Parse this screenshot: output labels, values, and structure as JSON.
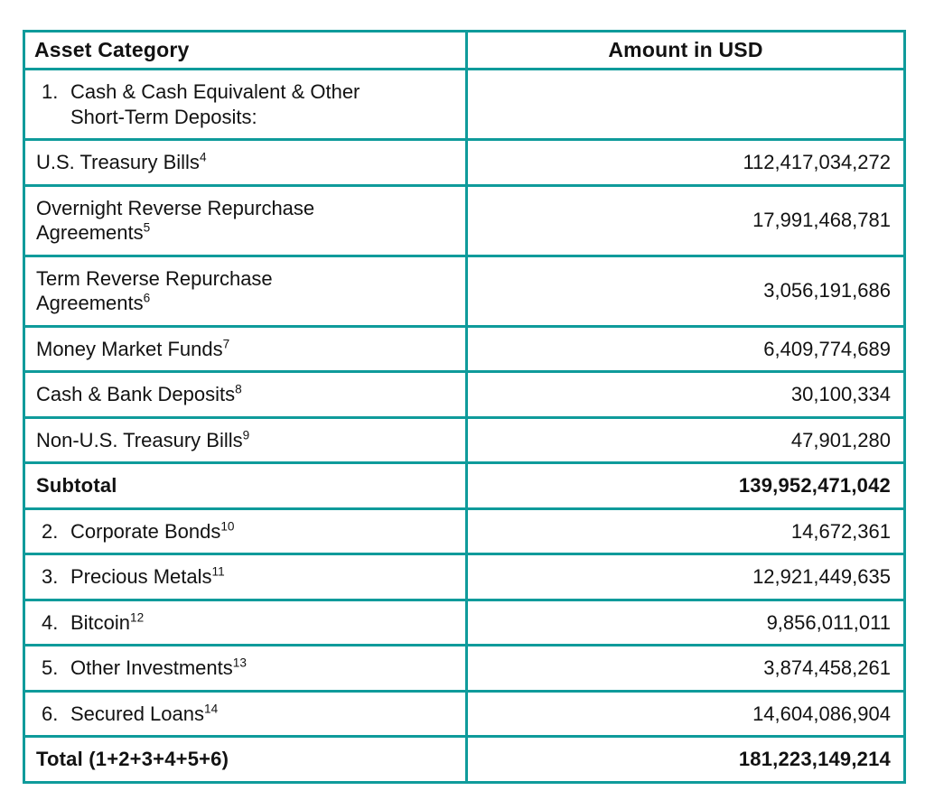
{
  "table": {
    "title_semantics": "asset-reserves-breakdown",
    "border_color": "#0f9b9b",
    "text_color": "#121212",
    "columns": [
      "Asset Category",
      "Amount in USD"
    ],
    "rows": [
      {
        "num": "1.",
        "label": "Cash & Cash Equivalent & Other Short-Term Deposits:",
        "amount": ""
      },
      {
        "label": "U.S. Treasury Bills",
        "sup": "4",
        "amount": "112,417,034,272"
      },
      {
        "label": "Overnight Reverse Repurchase Agreements",
        "sup": "5",
        "amount": "17,991,468,781"
      },
      {
        "label": "Term Reverse Repurchase Agreements",
        "sup": "6",
        "amount": "3,056,191,686"
      },
      {
        "label": "Money Market Funds",
        "sup": "7",
        "amount": "6,409,774,689"
      },
      {
        "label": "Cash & Bank Deposits",
        "sup": "8",
        "amount": "30,100,334"
      },
      {
        "label": "Non-U.S. Treasury Bills",
        "sup": "9",
        "amount": "47,901,280"
      },
      {
        "label": "Subtotal",
        "amount": "139,952,471,042"
      },
      {
        "num": "2.",
        "label": "Corporate Bonds",
        "sup": "10",
        "amount": "14,672,361"
      },
      {
        "num": "3.",
        "label": "Precious Metals",
        "sup": "11",
        "amount": "12,921,449,635"
      },
      {
        "num": "4.",
        "label": "Bitcoin",
        "sup": "12",
        "amount": "9,856,011,011"
      },
      {
        "num": "5.",
        "label": "Other Investments",
        "sup": "13",
        "amount": "3,874,458,261"
      },
      {
        "num": "6.",
        "label": "Secured Loans",
        "sup": "14",
        "amount": "14,604,086,904"
      },
      {
        "label": "Total (1+2+3+4+5+6)",
        "amount": "181,223,149,214"
      }
    ]
  }
}
